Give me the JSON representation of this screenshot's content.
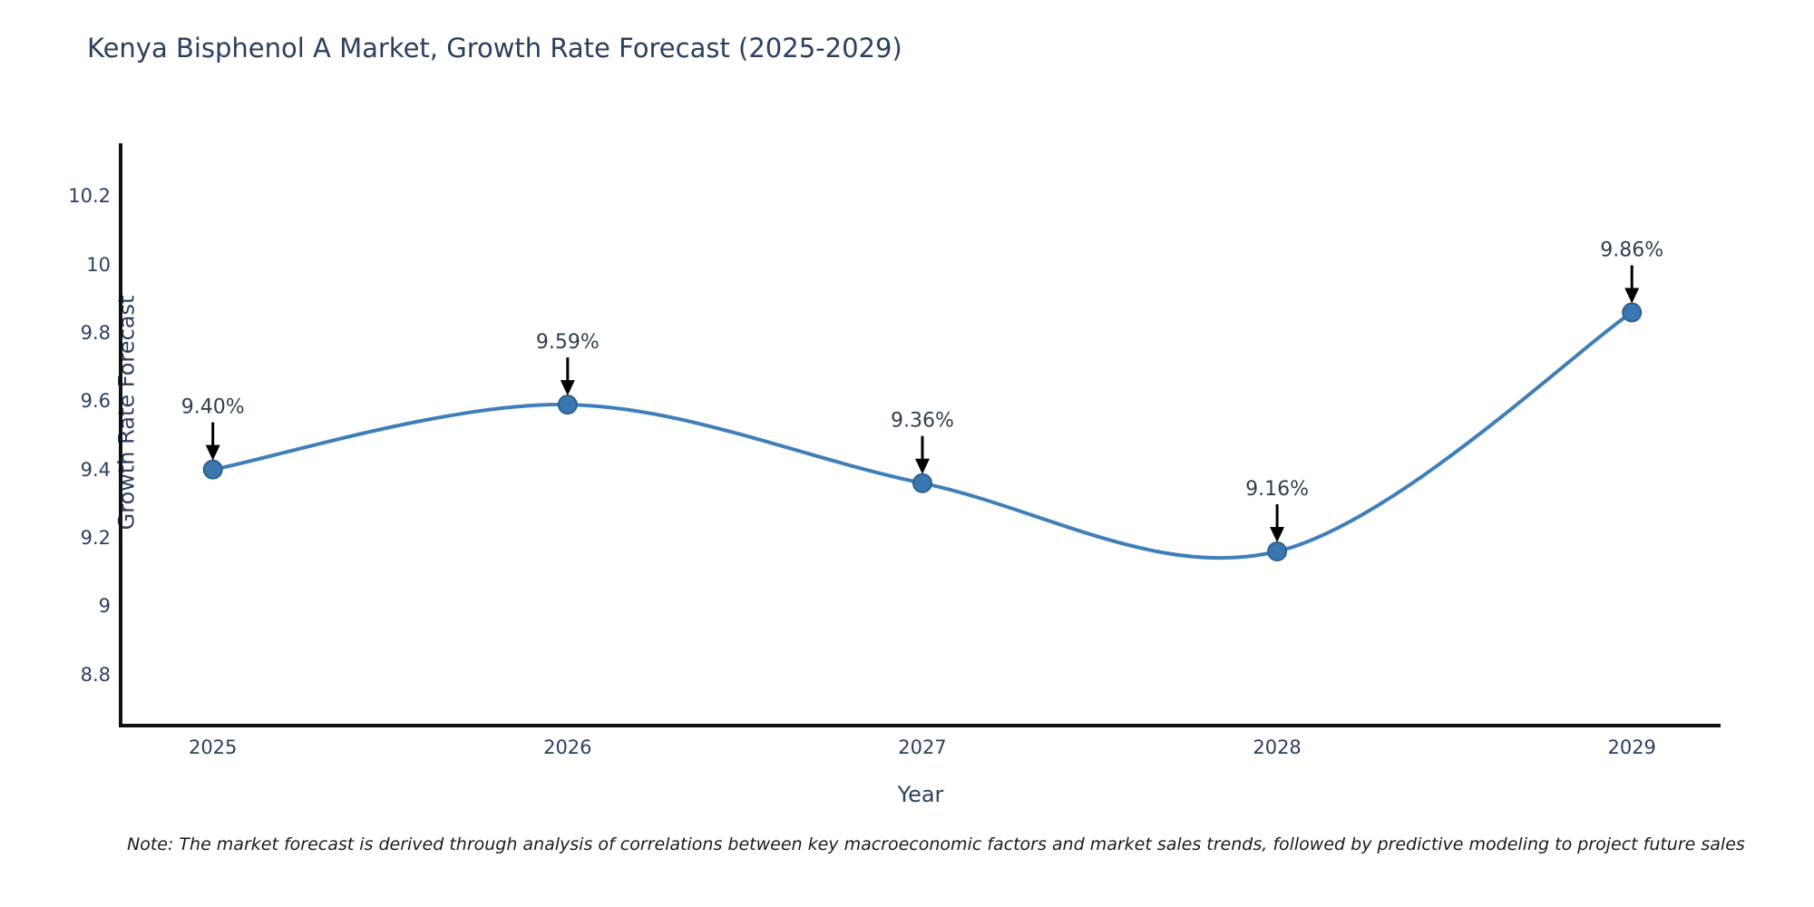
{
  "page": {
    "background": "#ffffff"
  },
  "chart_data": {
    "type": "line",
    "curve": "spline",
    "title": "Kenya Bisphenol A Market, Growth Rate Forecast (2025-2029)",
    "xlabel": "Year",
    "ylabel": "Growth Rate Forecast",
    "categories": [
      2025,
      2026,
      2027,
      2028,
      2029
    ],
    "x_tick_labels": [
      "2025",
      "2026",
      "2027",
      "2028",
      "2029"
    ],
    "values": [
      9.4,
      9.59,
      9.36,
      9.16,
      9.86
    ],
    "point_labels": [
      "9.40%",
      "9.59%",
      "9.36%",
      "9.16%",
      "9.86%"
    ],
    "y_ticks": [
      10.2,
      10,
      9.8,
      9.6,
      9.4,
      9.2,
      9,
      8.8
    ],
    "y_tick_labels": [
      "10.2",
      "10",
      "9.8",
      "9.6",
      "9.4",
      "9.2",
      "9",
      "8.8"
    ],
    "xlim": [
      2024.74,
      2029.25
    ],
    "ylim": [
      8.65,
      10.35
    ],
    "grid": false,
    "legend_position": "none",
    "note": "Note: The market forecast is derived through analysis of correlations between key macroeconomic factors and market sales trends, followed by predictive modeling to project future sales",
    "colors": {
      "line": "#3f7fb9",
      "marker_fill": "#3a77b0",
      "marker_edge": "#2c618f",
      "axis_spine": "#111111",
      "annotation_arrow": "#000000",
      "annotation_text": "#2f3f52",
      "title_text": "#2b3f5e",
      "tick_text": "#2b3f5e"
    }
  }
}
